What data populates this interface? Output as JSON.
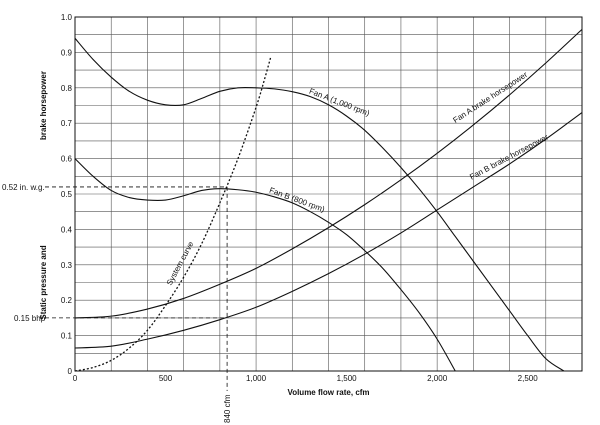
{
  "chart_data": {
    "type": "line",
    "title": "",
    "xlabel": "Volume flow rate, cfm",
    "ylabel_line1": "Static pressure and",
    "ylabel_line2": "brake horsepower",
    "xlim": [
      0,
      2800
    ],
    "ylim": [
      0,
      1.0
    ],
    "x_ticks": [
      0,
      500,
      1000,
      1500,
      2000,
      2500
    ],
    "x_tick_labels": [
      "0",
      "500",
      "1,000",
      "1,500",
      "2,000",
      "2,500"
    ],
    "y_ticks": [
      0,
      0.1,
      0.2,
      0.3,
      0.4,
      0.5,
      0.6,
      0.7,
      0.8,
      0.9,
      1.0
    ],
    "y_tick_labels": [
      "0",
      "0.1",
      "0.2",
      "0.3",
      "0.4",
      "0.5",
      "0.6",
      "0.7",
      "0.8",
      "0.9",
      "1.0"
    ],
    "grid": true,
    "x_grid_step": 200,
    "y_grid_step": 0.05,
    "series": [
      {
        "name": "Fan A (1,000 rpm)",
        "style": "solid",
        "x": [
          0,
          100,
          200,
          300,
          400,
          500,
          600,
          700,
          800,
          900,
          1000,
          1100,
          1200,
          1300,
          1400,
          1500,
          1600,
          1700,
          1800,
          1900,
          2000,
          2100,
          2200,
          2300,
          2400,
          2500,
          2600,
          2700
        ],
        "y": [
          0.94,
          0.88,
          0.83,
          0.79,
          0.765,
          0.752,
          0.752,
          0.77,
          0.79,
          0.8,
          0.8,
          0.797,
          0.789,
          0.775,
          0.752,
          0.72,
          0.68,
          0.63,
          0.575,
          0.515,
          0.45,
          0.38,
          0.31,
          0.24,
          0.17,
          0.1,
          0.035,
          0.0
        ]
      },
      {
        "name": "Fan B (800 rpm)",
        "style": "solid",
        "x": [
          0,
          100,
          200,
          300,
          400,
          500,
          600,
          700,
          800,
          900,
          1000,
          1100,
          1200,
          1300,
          1400,
          1500,
          1600,
          1700,
          1800,
          1900,
          2000,
          2100
        ],
        "y": [
          0.6,
          0.55,
          0.51,
          0.49,
          0.483,
          0.483,
          0.495,
          0.51,
          0.515,
          0.512,
          0.505,
          0.492,
          0.475,
          0.45,
          0.42,
          0.385,
          0.34,
          0.29,
          0.23,
          0.165,
          0.09,
          0.0
        ]
      },
      {
        "name": "Fan A brake horsepower",
        "style": "solid",
        "x": [
          0,
          200,
          400,
          600,
          800,
          1000,
          1200,
          1400,
          1600,
          1800,
          2000,
          2200,
          2400,
          2600,
          2800
        ],
        "y": [
          0.15,
          0.155,
          0.175,
          0.205,
          0.245,
          0.29,
          0.345,
          0.405,
          0.47,
          0.54,
          0.615,
          0.695,
          0.78,
          0.87,
          0.965
        ]
      },
      {
        "name": "Fan B brake horsepower",
        "style": "solid",
        "x": [
          0,
          200,
          400,
          600,
          800,
          1000,
          1200,
          1400,
          1600,
          1800,
          2000,
          2200,
          2400,
          2600,
          2800
        ],
        "y": [
          0.065,
          0.07,
          0.09,
          0.115,
          0.145,
          0.18,
          0.225,
          0.275,
          0.33,
          0.39,
          0.455,
          0.52,
          0.585,
          0.655,
          0.73
        ]
      },
      {
        "name": "System curve",
        "style": "dotted",
        "x": [
          0,
          100,
          200,
          300,
          400,
          500,
          600,
          700,
          800,
          900,
          1000,
          1050,
          1080
        ],
        "y": [
          0.0,
          0.01,
          0.03,
          0.065,
          0.115,
          0.185,
          0.265,
          0.36,
          0.475,
          0.6,
          0.745,
          0.83,
          0.885
        ]
      }
    ],
    "annotations": {
      "pressure_label": "0.52 in. w.g.",
      "pressure_value": 0.52,
      "bhp_label": "0.15 bhp",
      "bhp_value": 0.15,
      "flow_label": "840 cfm",
      "flow_value": 840
    }
  }
}
